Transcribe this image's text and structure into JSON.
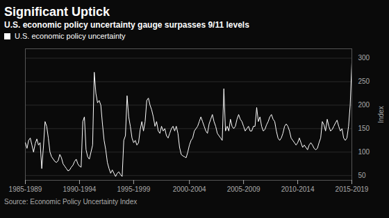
{
  "chart_data": {
    "type": "line",
    "title": "Significant Uptick",
    "subtitle": "U.S. economic policy uncertainty gauge surpasses 9/11 levels",
    "source": "Source: Economic Policy Uncertainty Index",
    "ylabel": "Index",
    "categories": [
      "1985-1989",
      null,
      null,
      null,
      null,
      null,
      null,
      null,
      null,
      null,
      null,
      null,
      null,
      null,
      null,
      null,
      null,
      null,
      null,
      null,
      null,
      null,
      null,
      null,
      null,
      null,
      null,
      null,
      null,
      null,
      null,
      null,
      null,
      "1990-1994",
      null,
      null,
      null,
      null,
      null,
      null,
      null,
      null,
      null,
      null,
      null,
      null,
      null,
      null,
      null,
      null,
      null,
      null,
      null,
      null,
      null,
      null,
      null,
      null,
      null,
      null,
      null,
      null,
      null,
      null,
      null,
      null,
      "1995-1999",
      null,
      null,
      null,
      null,
      null,
      null,
      null,
      null,
      null,
      null,
      null,
      null,
      null,
      null,
      null,
      null,
      null,
      null,
      null,
      null,
      null,
      null,
      null,
      null,
      null,
      null,
      null,
      null,
      null,
      null,
      null,
      null,
      null,
      "2000-2004",
      null,
      null,
      null,
      null,
      null,
      null,
      null,
      null,
      null,
      null,
      null,
      null,
      null,
      null,
      null,
      null,
      null,
      null,
      null,
      null,
      null,
      null,
      null,
      null,
      null,
      null,
      null,
      null,
      null,
      null,
      null,
      null,
      "2005-2009",
      null,
      null,
      null,
      null,
      null,
      null,
      null,
      null,
      null,
      null,
      null,
      null,
      null,
      null,
      null,
      null,
      null,
      null,
      null,
      null,
      null,
      null,
      null,
      null,
      null,
      null,
      null,
      null,
      null,
      null,
      null,
      null,
      "2010-2014",
      null,
      null,
      null,
      null,
      null,
      null,
      null,
      null,
      null,
      null,
      null,
      null,
      null,
      null,
      null,
      null,
      null,
      null,
      null,
      null,
      null,
      null,
      null,
      null,
      null,
      null,
      null,
      null,
      null,
      null,
      null,
      null,
      "2015-2019"
    ],
    "series": [
      {
        "name": "U.S. economic policy uncertainty",
        "color": "#ffffff",
        "values": [
          120,
          108,
          125,
          130,
          115,
          100,
          118,
          128,
          115,
          120,
          65,
          110,
          165,
          155,
          130,
          100,
          90,
          85,
          80,
          78,
          82,
          95,
          88,
          75,
          70,
          65,
          60,
          62,
          68,
          72,
          80,
          85,
          75,
          70,
          68,
          165,
          175,
          105,
          90,
          85,
          100,
          115,
          270,
          225,
          205,
          210,
          200,
          160,
          125,
          105,
          78,
          65,
          55,
          62,
          55,
          48,
          55,
          58,
          52,
          48,
          125,
          135,
          220,
          175,
          155,
          130,
          120,
          125,
          115,
          120,
          148,
          165,
          145,
          165,
          210,
          215,
          200,
          190,
          175,
          155,
          165,
          145,
          140,
          155,
          145,
          150,
          135,
          130,
          140,
          150,
          155,
          145,
          155,
          140,
          110,
          95,
          92,
          90,
          88,
          100,
          115,
          125,
          130,
          145,
          150,
          155,
          165,
          175,
          165,
          155,
          145,
          140,
          160,
          170,
          180,
          165,
          155,
          140,
          135,
          130,
          125,
          235,
          145,
          155,
          145,
          170,
          155,
          150,
          155,
          170,
          180,
          170,
          165,
          155,
          145,
          150,
          155,
          145,
          145,
          155,
          155,
          195,
          165,
          175,
          155,
          145,
          148,
          158,
          165,
          175,
          180,
          170,
          165,
          145,
          130,
          125,
          130,
          140,
          155,
          160,
          155,
          145,
          130,
          125,
          120,
          115,
          120,
          130,
          120,
          110,
          115,
          110,
          105,
          115,
          120,
          115,
          108,
          105,
          108,
          120,
          130,
          165,
          158,
          145,
          170,
          155,
          145,
          148,
          155,
          162,
          168,
          155,
          145,
          150,
          130,
          125,
          130,
          155,
          200,
          290
        ]
      }
    ],
    "ylim": [
      40,
      320
    ],
    "yticks": [
      50,
      100,
      150,
      200,
      250,
      300
    ],
    "grid": true,
    "legend": "top"
  }
}
